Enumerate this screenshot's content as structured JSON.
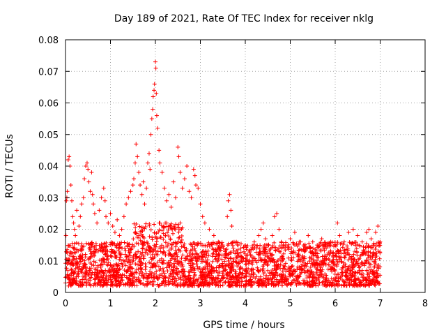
{
  "chart_data": {
    "type": "scatter",
    "title": "Day 189 of 2021, Rate Of TEC Index for receiver nklg",
    "xlabel": "GPS time / hours",
    "ylabel": "ROTI / TECUs",
    "xlim": [
      0,
      8
    ],
    "ylim": [
      0,
      0.08
    ],
    "xticks": [
      0,
      1,
      2,
      3,
      4,
      5,
      6,
      7,
      8
    ],
    "yticks": [
      0,
      0.01,
      0.02,
      0.03,
      0.04,
      0.05,
      0.06,
      0.07,
      0.08
    ],
    "xtick_labels": [
      "0",
      "1",
      "2",
      "3",
      "4",
      "5",
      "6",
      "7",
      "8"
    ],
    "ytick_labels": [
      "0",
      "0.01",
      "0.02",
      "0.03",
      "0.04",
      "0.05",
      "0.06",
      "0.07",
      "0.08"
    ],
    "grid": true,
    "marker": "+",
    "series": [
      {
        "name": "ROTI",
        "color": "#ff0000",
        "points": [
          [
            0.0,
            0.003
          ],
          [
            0.01,
            0.018
          ],
          [
            0.02,
            0.029
          ],
          [
            0.03,
            0.03
          ],
          [
            0.04,
            0.032
          ],
          [
            0.06,
            0.042
          ],
          [
            0.08,
            0.043
          ],
          [
            0.1,
            0.04
          ],
          [
            0.12,
            0.034
          ],
          [
            0.14,
            0.029
          ],
          [
            0.16,
            0.024
          ],
          [
            0.18,
            0.022
          ],
          [
            0.2,
            0.02
          ],
          [
            0.22,
            0.018
          ],
          [
            0.25,
            0.026
          ],
          [
            0.3,
            0.021
          ],
          [
            0.33,
            0.024
          ],
          [
            0.36,
            0.028
          ],
          [
            0.4,
            0.03
          ],
          [
            0.42,
            0.036
          ],
          [
            0.45,
            0.04
          ],
          [
            0.48,
            0.041
          ],
          [
            0.5,
            0.039
          ],
          [
            0.52,
            0.035
          ],
          [
            0.55,
            0.032
          ],
          [
            0.58,
            0.038
          ],
          [
            0.6,
            0.031
          ],
          [
            0.62,
            0.028
          ],
          [
            0.65,
            0.025
          ],
          [
            0.7,
            0.022
          ],
          [
            0.75,
            0.026
          ],
          [
            0.8,
            0.03
          ],
          [
            0.85,
            0.033
          ],
          [
            0.88,
            0.029
          ],
          [
            0.9,
            0.024
          ],
          [
            0.95,
            0.022
          ],
          [
            1.0,
            0.025
          ],
          [
            1.05,
            0.021
          ],
          [
            1.1,
            0.019
          ],
          [
            1.15,
            0.023
          ],
          [
            1.2,
            0.018
          ],
          [
            1.25,
            0.02
          ],
          [
            1.3,
            0.024
          ],
          [
            1.35,
            0.028
          ],
          [
            1.4,
            0.03
          ],
          [
            1.45,
            0.032
          ],
          [
            1.5,
            0.034
          ],
          [
            1.52,
            0.036
          ],
          [
            1.55,
            0.041
          ],
          [
            1.57,
            0.047
          ],
          [
            1.6,
            0.043
          ],
          [
            1.63,
            0.038
          ],
          [
            1.66,
            0.034
          ],
          [
            1.7,
            0.031
          ],
          [
            1.73,
            0.035
          ],
          [
            1.76,
            0.028
          ],
          [
            1.8,
            0.033
          ],
          [
            1.83,
            0.041
          ],
          [
            1.86,
            0.044
          ],
          [
            1.88,
            0.039
          ],
          [
            1.9,
            0.05
          ],
          [
            1.92,
            0.055
          ],
          [
            1.94,
            0.058
          ],
          [
            1.95,
            0.062
          ],
          [
            1.97,
            0.064
          ],
          [
            1.98,
            0.066
          ],
          [
            2.0,
            0.073
          ],
          [
            2.01,
            0.071
          ],
          [
            2.02,
            0.063
          ],
          [
            2.03,
            0.056
          ],
          [
            2.05,
            0.052
          ],
          [
            2.08,
            0.045
          ],
          [
            2.1,
            0.041
          ],
          [
            2.15,
            0.038
          ],
          [
            2.2,
            0.033
          ],
          [
            2.25,
            0.029
          ],
          [
            2.3,
            0.031
          ],
          [
            2.35,
            0.027
          ],
          [
            2.4,
            0.035
          ],
          [
            2.45,
            0.03
          ],
          [
            2.5,
            0.046
          ],
          [
            2.52,
            0.043
          ],
          [
            2.55,
            0.038
          ],
          [
            2.6,
            0.033
          ],
          [
            2.65,
            0.036
          ],
          [
            2.7,
            0.04
          ],
          [
            2.75,
            0.032
          ],
          [
            2.8,
            0.03
          ],
          [
            2.85,
            0.039
          ],
          [
            2.88,
            0.037
          ],
          [
            2.9,
            0.034
          ],
          [
            2.95,
            0.033
          ],
          [
            3.0,
            0.028
          ],
          [
            3.05,
            0.024
          ],
          [
            3.1,
            0.022
          ],
          [
            3.2,
            0.02
          ],
          [
            3.3,
            0.018
          ],
          [
            3.4,
            0.016
          ],
          [
            3.5,
            0.015
          ],
          [
            3.6,
            0.024
          ],
          [
            3.62,
            0.029
          ],
          [
            3.65,
            0.031
          ],
          [
            3.68,
            0.026
          ],
          [
            3.7,
            0.021
          ],
          [
            3.8,
            0.016
          ],
          [
            3.9,
            0.014
          ],
          [
            4.0,
            0.015
          ],
          [
            4.1,
            0.013
          ],
          [
            4.2,
            0.016
          ],
          [
            4.3,
            0.018
          ],
          [
            4.35,
            0.02
          ],
          [
            4.4,
            0.022
          ],
          [
            4.45,
            0.017
          ],
          [
            4.5,
            0.015
          ],
          [
            4.6,
            0.018
          ],
          [
            4.65,
            0.024
          ],
          [
            4.7,
            0.025
          ],
          [
            4.75,
            0.02
          ],
          [
            4.8,
            0.016
          ],
          [
            4.9,
            0.015
          ],
          [
            5.0,
            0.017
          ],
          [
            5.1,
            0.019
          ],
          [
            5.2,
            0.016
          ],
          [
            5.3,
            0.015
          ],
          [
            5.4,
            0.018
          ],
          [
            5.5,
            0.016
          ],
          [
            5.6,
            0.015
          ],
          [
            5.7,
            0.017
          ],
          [
            5.8,
            0.014
          ],
          [
            5.9,
            0.016
          ],
          [
            6.0,
            0.015
          ],
          [
            6.05,
            0.022
          ],
          [
            6.1,
            0.018
          ],
          [
            6.2,
            0.016
          ],
          [
            6.3,
            0.019
          ],
          [
            6.4,
            0.02
          ],
          [
            6.5,
            0.018
          ],
          [
            6.6,
            0.016
          ],
          [
            6.7,
            0.019
          ],
          [
            6.75,
            0.02
          ],
          [
            6.8,
            0.017
          ],
          [
            6.85,
            0.015
          ],
          [
            6.9,
            0.019
          ],
          [
            6.95,
            0.021
          ],
          [
            7.0,
            0.016
          ]
        ]
      }
    ],
    "density_note_bands": [
      [
        0.0,
        7.0,
        0.002,
        0.016
      ]
    ]
  }
}
